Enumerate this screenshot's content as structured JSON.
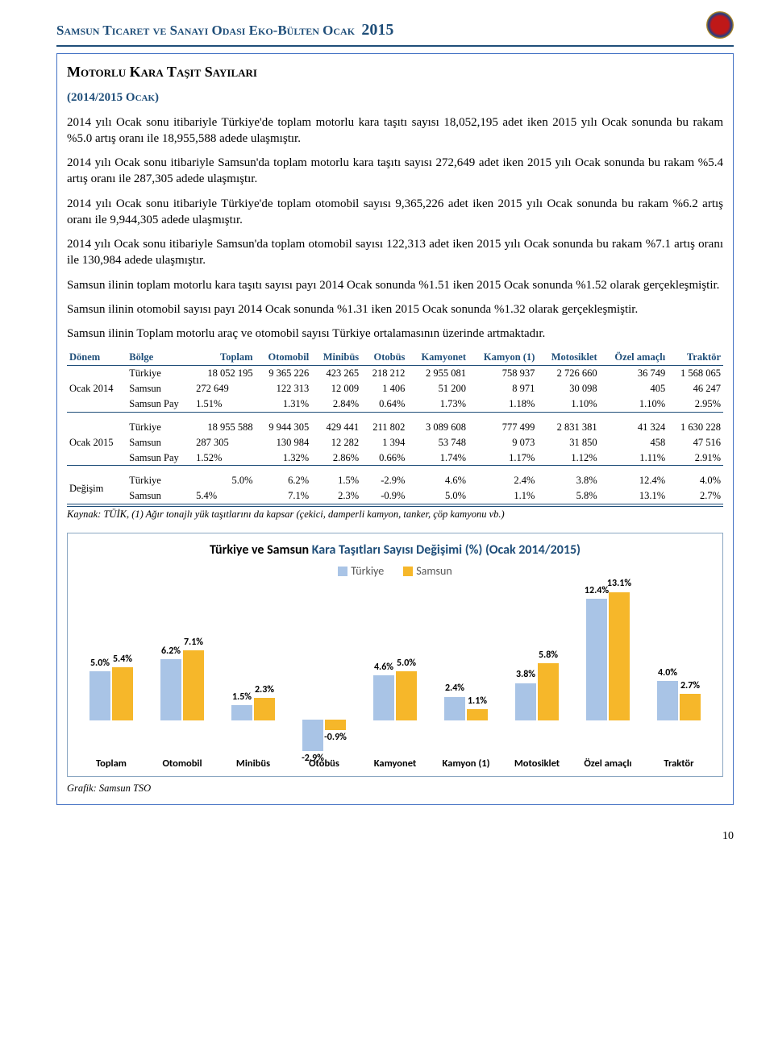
{
  "header": {
    "title": "Samsun Ticaret ve Sanayi Odası Eko-Bülten Ocak",
    "year": "2015"
  },
  "section_title": "Motorlu Kara Taşıt Sayıları",
  "subsection": "(2014/2015 Ocak)",
  "paragraphs": [
    "2014 yılı Ocak sonu itibariyle Türkiye'de toplam motorlu kara taşıtı sayısı 18,052,195 adet iken 2015 yılı Ocak sonunda bu rakam %5.0 artış oranı ile 18,955,588 adede ulaşmıştır.",
    "2014 yılı Ocak sonu itibariyle Samsun'da toplam motorlu kara taşıtı sayısı 272,649 adet iken 2015 yılı Ocak sonunda bu rakam %5.4 artış oranı ile 287,305 adede ulaşmıştır.",
    "2014 yılı Ocak sonu itibariyle Türkiye'de toplam otomobil sayısı 9,365,226 adet iken 2015 yılı Ocak sonunda bu rakam %6.2 artış oranı ile 9,944,305 adede ulaşmıştır.",
    "2014 yılı Ocak sonu itibariyle Samsun'da toplam otomobil sayısı 122,313 adet iken 2015 yılı Ocak sonunda bu rakam %7.1 artış oranı ile 130,984 adede ulaşmıştır.",
    "Samsun ilinin toplam motorlu kara taşıtı sayısı payı 2014 Ocak sonunda %1.51 iken 2015 Ocak sonunda %1.52 olarak gerçekleşmiştir.",
    "Samsun ilinin otomobil sayısı payı 2014 Ocak sonunda %1.31 iken 2015 Ocak sonunda %1.32 olarak gerçekleşmiştir.",
    "Samsun ilinin Toplam motorlu araç ve otomobil sayısı Türkiye ortalamasının üzerinde artmaktadır."
  ],
  "table": {
    "headers": [
      "Dönem",
      "Bölge",
      "Toplam",
      "Otomobil",
      "Minibüs",
      "Otobüs",
      "Kamyonet",
      "Kamyon (1)",
      "Motosiklet",
      "Özel amaçlı",
      "Traktör"
    ],
    "blocks": [
      {
        "period": "Ocak 2014",
        "rows": [
          [
            "Türkiye",
            "18 052 195",
            "9 365 226",
            "423 265",
            "218 212",
            "2 955 081",
            "758 937",
            "2 726 660",
            "36 749",
            "1 568 065"
          ],
          [
            "Samsun",
            "272 649",
            "122 313",
            "12 009",
            "1 406",
            "51 200",
            "8 971",
            "30 098",
            "405",
            "46 247"
          ],
          [
            "Samsun Pay",
            "1.51%",
            "1.31%",
            "2.84%",
            "0.64%",
            "1.73%",
            "1.18%",
            "1.10%",
            "1.10%",
            "2.95%"
          ]
        ]
      },
      {
        "period": "Ocak 2015",
        "rows": [
          [
            "Türkiye",
            "18 955 588",
            "9 944 305",
            "429 441",
            "211 802",
            "3 089 608",
            "777 499",
            "2 831 381",
            "41 324",
            "1 630 228"
          ],
          [
            "Samsun",
            "287 305",
            "130 984",
            "12 282",
            "1 394",
            "53 748",
            "9 073",
            "31 850",
            "458",
            "47 516"
          ],
          [
            "Samsun Pay",
            "1.52%",
            "1.32%",
            "2.86%",
            "0.66%",
            "1.74%",
            "1.17%",
            "1.12%",
            "1.11%",
            "2.91%"
          ]
        ]
      },
      {
        "period": "Değişim",
        "rows": [
          [
            "Türkiye",
            "5.0%",
            "6.2%",
            "1.5%",
            "-2.9%",
            "4.6%",
            "2.4%",
            "3.8%",
            "12.4%",
            "4.0%"
          ],
          [
            "Samsun",
            "5.4%",
            "7.1%",
            "2.3%",
            "-0.9%",
            "5.0%",
            "1.1%",
            "5.8%",
            "13.1%",
            "2.7%"
          ]
        ]
      }
    ],
    "footnote": "Kaynak: TÜİK, (1) Ağır tonajlı yük taşıtlarını da kapsar (çekici, damperli kamyon, tanker, çöp kamyonu vb.)"
  },
  "chart": {
    "title_prefix": "Türkiye ve Samsun ",
    "title_hl": "Kara Taşıtları Sayısı Değişimi (%) (Ocak 2014/2015)",
    "legend": [
      "Türkiye",
      "Samsun"
    ],
    "colors": {
      "turkiye": "#a9c4e6",
      "samsun": "#f6b72a",
      "text": "#000000",
      "border": "#8aa6c1"
    },
    "max": 14,
    "neg_max": 3,
    "categories": [
      {
        "label": "Toplam",
        "t": 5.0,
        "s": 5.4
      },
      {
        "label": "Otomobil",
        "t": 6.2,
        "s": 7.1
      },
      {
        "label": "Minibüs",
        "t": 1.5,
        "s": 2.3
      },
      {
        "label": "Otobüs",
        "t": -2.9,
        "s": -0.9
      },
      {
        "label": "Kamyonet",
        "t": 4.6,
        "s": 5.0
      },
      {
        "label": "Kamyon (1)",
        "t": 2.4,
        "s": 1.1
      },
      {
        "label": "Motosiklet",
        "t": 3.8,
        "s": 5.8
      },
      {
        "label": "Özel amaçlı",
        "t": 12.4,
        "s": 13.1
      },
      {
        "label": "Traktör",
        "t": 4.0,
        "s": 2.7
      }
    ],
    "source": "Grafik: Samsun TSO"
  },
  "page_number": "10"
}
